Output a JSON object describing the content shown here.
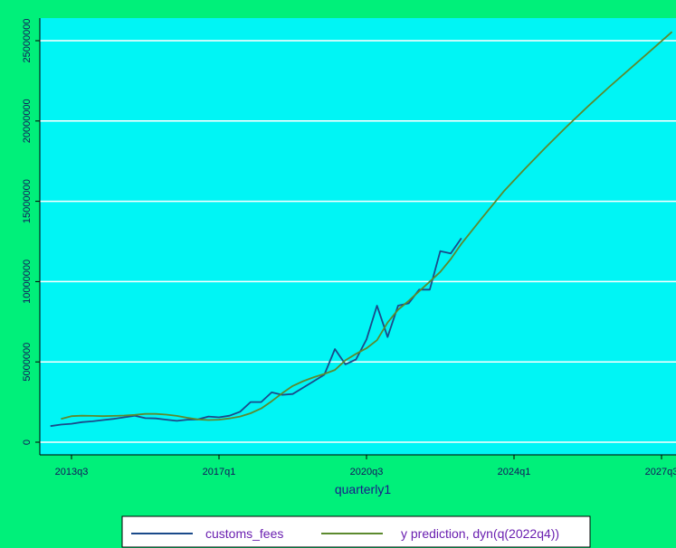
{
  "chart_data": {
    "type": "line",
    "title": "",
    "xlabel": "quarterly1",
    "ylabel": "",
    "x_ticks": [
      "2013q3",
      "2017q1",
      "2020q3",
      "2024q1",
      "2027q3"
    ],
    "y_ticks": [
      "0",
      "5000000",
      "10000000",
      "15000000",
      "20000000",
      "25000000"
    ],
    "y_tick_values": [
      0,
      5000000,
      10000000,
      15000000,
      20000000,
      25000000
    ],
    "ylim": [
      0,
      26000000
    ],
    "xlim": [
      "2013q1",
      "2027q3"
    ],
    "grid": "horizontal",
    "legend_position": "bottom",
    "colors": {
      "background": "#00f07a",
      "plot_area": "#00f5f5",
      "gridline": "#ffffff",
      "customs_fees": "#1a4a8a",
      "prediction": "#5c8a2e"
    },
    "series": [
      {
        "name": "customs_fees",
        "color": "#1a4a8a",
        "points": [
          [
            "2013q1",
            1000000
          ],
          [
            "2013q2",
            1100000
          ],
          [
            "2013q3",
            1150000
          ],
          [
            "2013q4",
            1250000
          ],
          [
            "2014q1",
            1300000
          ],
          [
            "2014q2",
            1380000
          ],
          [
            "2014q3",
            1450000
          ],
          [
            "2014q4",
            1550000
          ],
          [
            "2015q1",
            1650000
          ],
          [
            "2015q2",
            1500000
          ],
          [
            "2015q3",
            1480000
          ],
          [
            "2015q4",
            1400000
          ],
          [
            "2016q1",
            1330000
          ],
          [
            "2016q2",
            1400000
          ],
          [
            "2016q3",
            1420000
          ],
          [
            "2016q4",
            1600000
          ],
          [
            "2017q1",
            1550000
          ],
          [
            "2017q2",
            1650000
          ],
          [
            "2017q3",
            1900000
          ],
          [
            "2017q4",
            2500000
          ],
          [
            "2018q1",
            2500000
          ],
          [
            "2018q2",
            3100000
          ],
          [
            "2018q3",
            2950000
          ],
          [
            "2018q4",
            3000000
          ],
          [
            "2019q1",
            3400000
          ],
          [
            "2019q2",
            3800000
          ],
          [
            "2019q3",
            4200000
          ],
          [
            "2019q4",
            5800000
          ],
          [
            "2020q1",
            4850000
          ],
          [
            "2020q2",
            5150000
          ],
          [
            "2020q3",
            6400000
          ],
          [
            "2020q4",
            8500000
          ],
          [
            "2021q1",
            6550000
          ],
          [
            "2021q2",
            8500000
          ],
          [
            "2021q3",
            8650000
          ],
          [
            "2021q4",
            9500000
          ],
          [
            "2022q1",
            9500000
          ],
          [
            "2022q2",
            11900000
          ],
          [
            "2022q3",
            11750000
          ],
          [
            "2022q4",
            12700000
          ]
        ]
      },
      {
        "name": "y prediction, dyn(q(2022q4))",
        "color": "#5c8a2e",
        "points": [
          [
            "2013q2",
            1450000
          ],
          [
            "2013q3",
            1620000
          ],
          [
            "2013q4",
            1650000
          ],
          [
            "2014q1",
            1640000
          ],
          [
            "2014q2",
            1620000
          ],
          [
            "2014q3",
            1640000
          ],
          [
            "2014q4",
            1660000
          ],
          [
            "2015q1",
            1700000
          ],
          [
            "2015q2",
            1760000
          ],
          [
            "2015q3",
            1760000
          ],
          [
            "2015q4",
            1720000
          ],
          [
            "2016q1",
            1640000
          ],
          [
            "2016q2",
            1520000
          ],
          [
            "2016q3",
            1420000
          ],
          [
            "2016q4",
            1380000
          ],
          [
            "2017q1",
            1400000
          ],
          [
            "2017q2",
            1480000
          ],
          [
            "2017q3",
            1600000
          ],
          [
            "2017q4",
            1800000
          ],
          [
            "2018q1",
            2100000
          ],
          [
            "2018q2",
            2550000
          ],
          [
            "2018q3",
            3050000
          ],
          [
            "2018q4",
            3500000
          ],
          [
            "2019q1",
            3800000
          ],
          [
            "2019q2",
            4050000
          ],
          [
            "2019q3",
            4250000
          ],
          [
            "2019q4",
            4500000
          ],
          [
            "2020q1",
            5100000
          ],
          [
            "2020q2",
            5500000
          ],
          [
            "2020q3",
            5850000
          ],
          [
            "2020q4",
            6350000
          ],
          [
            "2021q1",
            7450000
          ],
          [
            "2021q2",
            8250000
          ],
          [
            "2021q3",
            8800000
          ],
          [
            "2021q4",
            9400000
          ],
          [
            "2022q1",
            10000000
          ],
          [
            "2022q2",
            10600000
          ],
          [
            "2022q3",
            11400000
          ],
          [
            "2022q4",
            12350000
          ],
          [
            "2023q2",
            14000000
          ],
          [
            "2023q4",
            15600000
          ],
          [
            "2024q2",
            17000000
          ],
          [
            "2024q4",
            18350000
          ],
          [
            "2025q2",
            19650000
          ],
          [
            "2025q4",
            20900000
          ],
          [
            "2026q2",
            22100000
          ],
          [
            "2026q4",
            23250000
          ],
          [
            "2027q2",
            24400000
          ],
          [
            "2027q4",
            25550000
          ]
        ]
      }
    ]
  }
}
